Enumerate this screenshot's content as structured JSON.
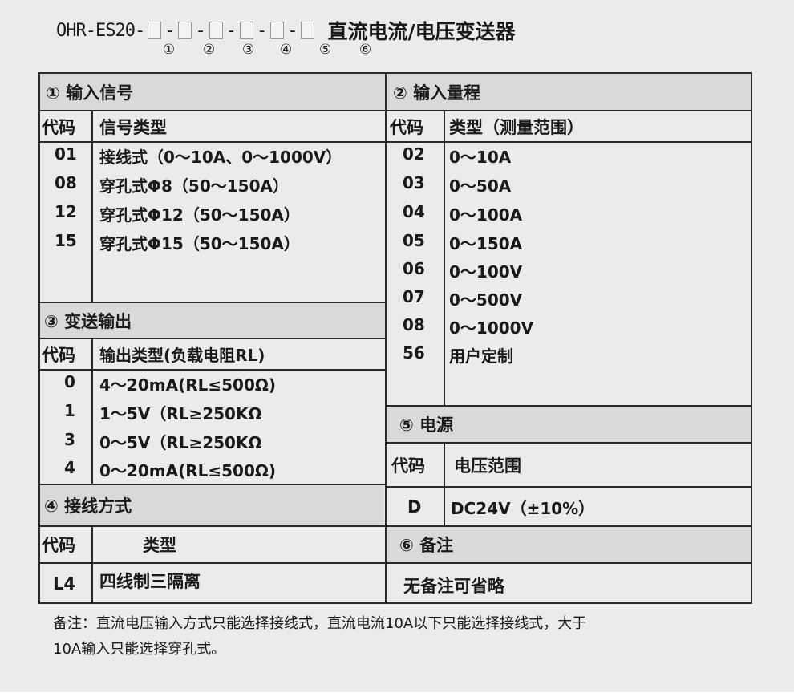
{
  "header": {
    "model": "OHR-ES20-",
    "name": "直流电流/电压变送器",
    "positions": [
      "①",
      "②",
      "③",
      "④",
      "⑤",
      "⑥"
    ]
  },
  "s1": {
    "title": "① 输入信号",
    "col_code": "代码",
    "col_type": "信号类型",
    "rows": [
      [
        "01",
        "接线式（0～10A、0～1000V）"
      ],
      [
        "08",
        "穿孔式Φ8（50～150A）"
      ],
      [
        "12",
        "穿孔式Φ12（50～150A）"
      ],
      [
        "15",
        "穿孔式Φ15（50～150A）"
      ]
    ]
  },
  "s2": {
    "title": "② 输入量程",
    "col_code": "代码",
    "col_type": "类型（测量范围）",
    "rows": [
      [
        "02",
        "0～10A"
      ],
      [
        "03",
        "0～50A"
      ],
      [
        "04",
        "0～100A"
      ],
      [
        "05",
        "0～150A"
      ],
      [
        "06",
        "0～100V"
      ],
      [
        "07",
        "0～500V"
      ],
      [
        "08",
        "0～1000V"
      ],
      [
        "56",
        "用户定制"
      ]
    ]
  },
  "s3": {
    "title": "③ 变送输出",
    "col_code": "代码",
    "col_type": "输出类型(负载电阻RL)",
    "rows": [
      [
        "0",
        "4～20mA(RL≤500Ω)"
      ],
      [
        "1",
        "1～5V（RL≥250KΩ"
      ],
      [
        "3",
        "0～5V（RL≥250KΩ"
      ],
      [
        "4",
        "0～20mA(RL≤500Ω)"
      ]
    ]
  },
  "s4": {
    "title": "④ 接线方式",
    "col_code": "代码",
    "col_type": "类型",
    "rows": [
      [
        "L4",
        "四线制三隔离"
      ]
    ]
  },
  "s5": {
    "title": "⑤ 电源",
    "col_code": "代码",
    "col_type": "电压范围",
    "rows": [
      [
        "D",
        "DC24V（±10%）"
      ]
    ]
  },
  "s6": {
    "title": "⑥ 备注",
    "value": "无备注可省略"
  },
  "note": [
    "备注：直流电压输入方式只能选择接线式，直流电流10A以下只能选择接线式，大于",
    "10A输入只能选择穿孔式。"
  ]
}
